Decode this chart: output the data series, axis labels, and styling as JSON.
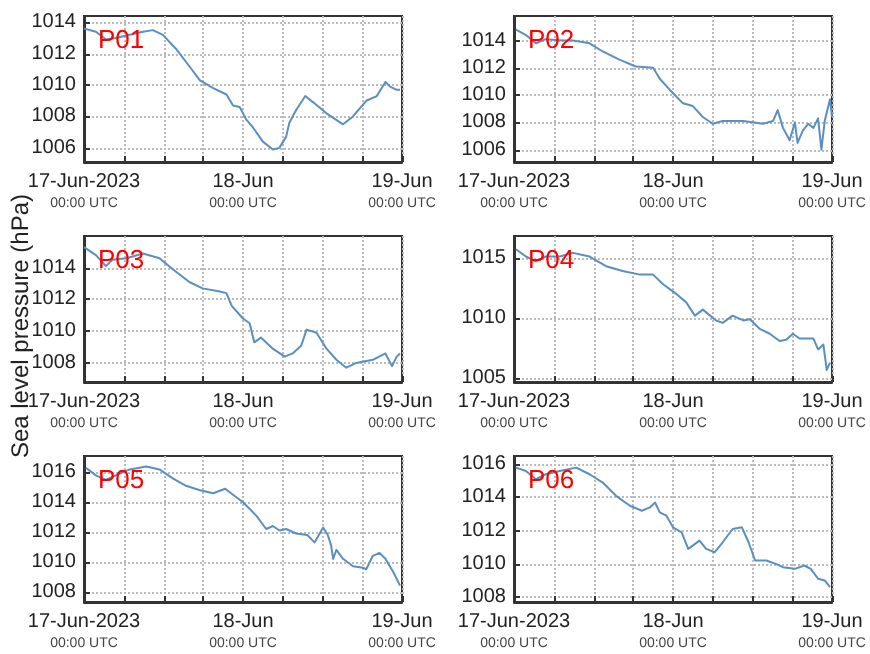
{
  "chart_data": [
    {
      "type": "line",
      "title": "P01",
      "color": "#5b8fbf",
      "grid": true,
      "xlim": [
        "2023-06-17T00:00",
        "2023-06-19T00:00"
      ],
      "ylim": [
        1005.1,
        1014.4
      ],
      "yticks": [
        1006,
        1008,
        1010,
        1012,
        1014
      ],
      "xticks": [
        {
          "value": "2023-06-17T00:00",
          "label": "17-Jun-2023\n00:00 UTC"
        },
        {
          "value": "2023-06-17T06:00",
          "label": null
        },
        {
          "value": "2023-06-17T12:00",
          "label": null
        },
        {
          "value": "2023-06-17T18:00",
          "label": null
        },
        {
          "value": "2023-06-18T00:00",
          "label": "18-Jun\n00:00 UTC"
        },
        {
          "value": "2023-06-18T06:00",
          "label": null
        },
        {
          "value": "2023-06-18T12:00",
          "label": null
        },
        {
          "value": "2023-06-18T18:00",
          "label": null
        },
        {
          "value": "2023-06-19T00:00",
          "label": "19-Jun\n00:00 UTC"
        }
      ],
      "x": [
        "2023-06-17T00:00",
        "2023-06-17T01:48",
        "2023-06-17T03:18",
        "2023-06-17T04:48",
        "2023-06-17T06:54",
        "2023-06-17T08:54",
        "2023-06-17T10:24",
        "2023-06-17T11:54",
        "2023-06-17T13:54",
        "2023-06-17T15:54",
        "2023-06-17T17:30",
        "2023-06-17T19:30",
        "2023-06-17T21:30",
        "2023-06-17T22:30",
        "2023-06-17T23:30",
        "2023-06-18T00:30",
        "2023-06-18T01:30",
        "2023-06-18T03:00",
        "2023-06-18T04:30",
        "2023-06-18T05:30",
        "2023-06-18T06:30",
        "2023-06-18T07:00",
        "2023-06-18T08:00",
        "2023-06-18T09:24",
        "2023-06-18T10:36",
        "2023-06-18T12:36",
        "2023-06-18T15:06",
        "2023-06-18T16:36",
        "2023-06-18T18:36",
        "2023-06-18T20:12",
        "2023-06-18T21:30",
        "2023-06-18T22:12",
        "2023-06-18T23:12",
        "2023-06-18T23:42"
      ],
      "values": [
        1013.6,
        1013.4,
        1012.9,
        1013.0,
        1013.2,
        1013.4,
        1013.5,
        1013.2,
        1012.3,
        1011.2,
        1010.3,
        1009.8,
        1009.4,
        1008.7,
        1008.6,
        1007.8,
        1007.3,
        1006.4,
        1005.9,
        1006.0,
        1006.7,
        1007.6,
        1008.4,
        1009.3,
        1008.9,
        1008.2,
        1007.5,
        1008.0,
        1009.0,
        1009.3,
        1010.2,
        1009.9,
        1009.7,
        1009.7
      ]
    },
    {
      "type": "line",
      "title": "P02",
      "color": "#5b8fbf",
      "grid": true,
      "xlim": [
        "2023-06-17T00:00",
        "2023-06-19T00:00"
      ],
      "ylim": [
        1005.1,
        1015.8
      ],
      "yticks": [
        1006,
        1008,
        1010,
        1012,
        1014
      ],
      "xticks": [
        {
          "value": "2023-06-17T00:00",
          "label": "17-Jun-2023\n00:00 UTC"
        },
        {
          "value": "2023-06-17T06:00",
          "label": null
        },
        {
          "value": "2023-06-17T12:00",
          "label": null
        },
        {
          "value": "2023-06-17T18:00",
          "label": null
        },
        {
          "value": "2023-06-18T00:00",
          "label": "18-Jun\n00:00 UTC"
        },
        {
          "value": "2023-06-18T06:00",
          "label": null
        },
        {
          "value": "2023-06-18T12:00",
          "label": null
        },
        {
          "value": "2023-06-18T18:00",
          "label": null
        },
        {
          "value": "2023-06-19T00:00",
          "label": "19-Jun\n00:00 UTC"
        }
      ],
      "x": [
        "2023-06-17T00:18",
        "2023-06-17T01:48",
        "2023-06-17T03:18",
        "2023-06-17T04:48",
        "2023-06-17T07:24",
        "2023-06-17T08:54",
        "2023-06-17T11:24",
        "2023-06-17T13:24",
        "2023-06-17T15:54",
        "2023-06-17T18:24",
        "2023-06-17T21:00",
        "2023-06-17T22:00",
        "2023-06-17T23:30",
        "2023-06-18T01:30",
        "2023-06-18T03:00",
        "2023-06-18T04:30",
        "2023-06-18T06:00",
        "2023-06-18T07:30",
        "2023-06-18T10:36",
        "2023-06-18T13:36",
        "2023-06-18T15:06",
        "2023-06-18T15:48",
        "2023-06-18T16:36",
        "2023-06-18T17:36",
        "2023-06-18T18:24",
        "2023-06-18T18:48",
        "2023-06-18T19:36",
        "2023-06-18T20:24",
        "2023-06-18T21:12",
        "2023-06-18T21:54",
        "2023-06-18T22:24",
        "2023-06-18T22:54",
        "2023-06-18T23:42",
        "2023-06-19T00:00"
      ],
      "values": [
        1014.8,
        1014.4,
        1013.8,
        1014.1,
        1014.0,
        1014.0,
        1013.8,
        1013.2,
        1012.6,
        1012.1,
        1012.0,
        1011.2,
        1010.4,
        1009.4,
        1009.2,
        1008.4,
        1007.9,
        1008.1,
        1008.1,
        1007.9,
        1008.1,
        1008.9,
        1007.6,
        1006.7,
        1008.0,
        1006.5,
        1007.4,
        1007.9,
        1007.6,
        1008.3,
        1006.0,
        1008.1,
        1009.7,
        1008.4
      ]
    },
    {
      "type": "line",
      "title": "P03",
      "ylabel": "Sea level pressure (hPa)",
      "color": "#5b8fbf",
      "grid": true,
      "xlim": [
        "2023-06-17T00:00",
        "2023-06-19T00:00"
      ],
      "ylim": [
        1006.8,
        1016
      ],
      "yticks": [
        1008,
        1010,
        1012,
        1014
      ],
      "xticks": [
        {
          "value": "2023-06-17T00:00",
          "label": "17-Jun-2023\n00:00 UTC"
        },
        {
          "value": "2023-06-17T06:00",
          "label": null
        },
        {
          "value": "2023-06-17T12:00",
          "label": null
        },
        {
          "value": "2023-06-17T18:00",
          "label": null
        },
        {
          "value": "2023-06-18T00:00",
          "label": "18-Jun\n00:00 UTC"
        },
        {
          "value": "2023-06-18T06:00",
          "label": null
        },
        {
          "value": "2023-06-18T12:00",
          "label": null
        },
        {
          "value": "2023-06-18T18:00",
          "label": null
        },
        {
          "value": "2023-06-19T00:00",
          "label": "19-Jun\n00:00 UTC"
        }
      ],
      "x": [
        "2023-06-17T00:00",
        "2023-06-17T01:48",
        "2023-06-17T03:18",
        "2023-06-17T04:18",
        "2023-06-17T06:24",
        "2023-06-17T08:54",
        "2023-06-17T11:24",
        "2023-06-17T13:24",
        "2023-06-17T15:54",
        "2023-06-17T17:54",
        "2023-06-17T20:30",
        "2023-06-17T21:30",
        "2023-06-17T22:18",
        "2023-06-18T00:00",
        "2023-06-18T01:00",
        "2023-06-18T01:42",
        "2023-06-18T02:42",
        "2023-06-18T04:30",
        "2023-06-18T06:18",
        "2023-06-18T07:30",
        "2023-06-18T08:48",
        "2023-06-18T09:36",
        "2023-06-18T11:06",
        "2023-06-18T12:36",
        "2023-06-18T14:06",
        "2023-06-18T15:36",
        "2023-06-18T17:06",
        "2023-06-18T19:36",
        "2023-06-18T21:30",
        "2023-06-18T22:30",
        "2023-06-18T23:12",
        "2023-06-18T23:42"
      ],
      "values": [
        1015.3,
        1014.8,
        1014.1,
        1014.5,
        1014.6,
        1014.9,
        1014.6,
        1013.9,
        1013.1,
        1012.7,
        1012.5,
        1012.4,
        1011.6,
        1010.8,
        1010.5,
        1009.3,
        1009.6,
        1008.9,
        1008.4,
        1008.6,
        1009.1,
        1010.1,
        1009.9,
        1008.9,
        1008.2,
        1007.7,
        1008.0,
        1008.2,
        1008.6,
        1007.8,
        1008.4,
        1008.6
      ]
    },
    {
      "type": "line",
      "title": "P04",
      "color": "#5b8fbf",
      "grid": true,
      "xlim": [
        "2023-06-17T00:00",
        "2023-06-19T00:00"
      ],
      "ylim": [
        1004.7,
        1016.8
      ],
      "yticks": [
        1005,
        1010,
        1015
      ],
      "xticks": [
        {
          "value": "2023-06-17T00:00",
          "label": "17-Jun-2023\n00:00 UTC"
        },
        {
          "value": "2023-06-17T06:00",
          "label": null
        },
        {
          "value": "2023-06-17T12:00",
          "label": null
        },
        {
          "value": "2023-06-17T18:00",
          "label": null
        },
        {
          "value": "2023-06-18T00:00",
          "label": "18-Jun\n00:00 UTC"
        },
        {
          "value": "2023-06-18T06:00",
          "label": null
        },
        {
          "value": "2023-06-18T12:00",
          "label": null
        },
        {
          "value": "2023-06-18T18:00",
          "label": null
        },
        {
          "value": "2023-06-19T00:00",
          "label": "19-Jun\n00:00 UTC"
        }
      ],
      "x": [
        "2023-06-17T00:18",
        "2023-06-17T01:48",
        "2023-06-17T03:18",
        "2023-06-17T04:48",
        "2023-06-17T06:54",
        "2023-06-17T08:54",
        "2023-06-17T11:24",
        "2023-06-17T13:54",
        "2023-06-17T16:24",
        "2023-06-17T19:00",
        "2023-06-17T21:00",
        "2023-06-17T22:30",
        "2023-06-18T00:30",
        "2023-06-18T02:00",
        "2023-06-18T03:18",
        "2023-06-18T04:30",
        "2023-06-18T06:30",
        "2023-06-18T07:30",
        "2023-06-18T09:00",
        "2023-06-18T10:36",
        "2023-06-18T11:36",
        "2023-06-18T13:06",
        "2023-06-18T14:36",
        "2023-06-18T16:06",
        "2023-06-18T17:06",
        "2023-06-18T18:06",
        "2023-06-18T19:06",
        "2023-06-18T21:12",
        "2023-06-18T21:54",
        "2023-06-18T22:42",
        "2023-06-18T23:12",
        "2023-06-18T23:42"
      ],
      "values": [
        1015.7,
        1015.1,
        1014.7,
        1015.1,
        1015.1,
        1015.4,
        1015.1,
        1014.3,
        1013.9,
        1013.6,
        1013.6,
        1012.8,
        1012.0,
        1011.3,
        1010.2,
        1010.7,
        1009.8,
        1009.6,
        1010.2,
        1009.8,
        1009.9,
        1009.1,
        1008.7,
        1008.1,
        1008.2,
        1008.7,
        1008.3,
        1008.3,
        1007.4,
        1007.8,
        1005.7,
        1006.3
      ]
    },
    {
      "type": "line",
      "title": "P05",
      "color": "#5b8fbf",
      "grid": true,
      "xlim": [
        "2023-06-17T00:00",
        "2023-06-19T00:00"
      ],
      "ylim": [
        1007.3,
        1017.1
      ],
      "yticks": [
        1008,
        1010,
        1012,
        1014,
        1016
      ],
      "xticks": [
        {
          "value": "2023-06-17T00:00",
          "label": "17-Jun-2023\n00:00 UTC"
        },
        {
          "value": "2023-06-17T06:00",
          "label": null
        },
        {
          "value": "2023-06-17T12:00",
          "label": null
        },
        {
          "value": "2023-06-17T18:00",
          "label": null
        },
        {
          "value": "2023-06-18T00:00",
          "label": "18-Jun\n00:00 UTC"
        },
        {
          "value": "2023-06-18T06:00",
          "label": null
        },
        {
          "value": "2023-06-18T12:00",
          "label": null
        },
        {
          "value": "2023-06-18T18:00",
          "label": null
        },
        {
          "value": "2023-06-19T00:00",
          "label": "19-Jun\n00:00 UTC"
        }
      ],
      "x": [
        "2023-06-17T00:18",
        "2023-06-17T01:48",
        "2023-06-17T03:18",
        "2023-06-17T04:48",
        "2023-06-17T06:54",
        "2023-06-17T09:24",
        "2023-06-17T11:24",
        "2023-06-17T13:24",
        "2023-06-17T15:24",
        "2023-06-17T17:30",
        "2023-06-17T19:30",
        "2023-06-17T21:18",
        "2023-06-17T22:30",
        "2023-06-18T00:00",
        "2023-06-18T02:00",
        "2023-06-18T03:30",
        "2023-06-18T04:30",
        "2023-06-18T05:30",
        "2023-06-18T06:30",
        "2023-06-18T08:00",
        "2023-06-18T09:42",
        "2023-06-18T10:48",
        "2023-06-18T12:06",
        "2023-06-18T12:48",
        "2023-06-18T13:18",
        "2023-06-18T13:36",
        "2023-06-18T14:06",
        "2023-06-18T15:06",
        "2023-06-18T16:36",
        "2023-06-18T18:06",
        "2023-06-18T18:36",
        "2023-06-18T19:36",
        "2023-06-18T20:36",
        "2023-06-18T21:30",
        "2023-06-18T22:42",
        "2023-06-18T23:42"
      ],
      "values": [
        1016.3,
        1015.8,
        1015.5,
        1015.8,
        1016.2,
        1016.4,
        1016.2,
        1015.6,
        1015.1,
        1014.8,
        1014.6,
        1014.9,
        1014.5,
        1014.0,
        1013.1,
        1012.2,
        1012.4,
        1012.1,
        1012.2,
        1011.9,
        1011.8,
        1011.3,
        1012.3,
        1011.8,
        1011.1,
        1010.2,
        1010.8,
        1010.2,
        1009.7,
        1009.6,
        1009.5,
        1010.4,
        1010.6,
        1010.2,
        1009.3,
        1008.4
      ]
    },
    {
      "type": "line",
      "title": "P06",
      "color": "#5b8fbf",
      "grid": true,
      "xlim": [
        "2023-06-17T00:00",
        "2023-06-19T00:00"
      ],
      "ylim": [
        1007.7,
        1016.5
      ],
      "yticks": [
        1008,
        1010,
        1012,
        1014,
        1016
      ],
      "xticks": [
        {
          "value": "2023-06-17T00:00",
          "label": "17-Jun-2023\n00:00 UTC"
        },
        {
          "value": "2023-06-17T06:00",
          "label": null
        },
        {
          "value": "2023-06-17T12:00",
          "label": null
        },
        {
          "value": "2023-06-17T18:00",
          "label": null
        },
        {
          "value": "2023-06-18T00:00",
          "label": "18-Jun\n00:00 UTC"
        },
        {
          "value": "2023-06-18T06:00",
          "label": null
        },
        {
          "value": "2023-06-18T12:00",
          "label": null
        },
        {
          "value": "2023-06-18T18:00",
          "label": null
        },
        {
          "value": "2023-06-19T00:00",
          "label": "19-Jun\n00:00 UTC"
        }
      ],
      "x": [
        "2023-06-17T00:18",
        "2023-06-17T01:48",
        "2023-06-17T03:18",
        "2023-06-17T04:48",
        "2023-06-17T06:54",
        "2023-06-17T09:24",
        "2023-06-17T11:24",
        "2023-06-17T13:24",
        "2023-06-17T15:24",
        "2023-06-17T17:30",
        "2023-06-17T19:18",
        "2023-06-17T20:30",
        "2023-06-17T21:18",
        "2023-06-17T22:00",
        "2023-06-17T23:00",
        "2023-06-18T00:00",
        "2023-06-18T01:18",
        "2023-06-18T02:18",
        "2023-06-18T04:00",
        "2023-06-18T05:00",
        "2023-06-18T06:18",
        "2023-06-18T07:30",
        "2023-06-18T09:00",
        "2023-06-18T10:24",
        "2023-06-18T11:24",
        "2023-06-18T12:24",
        "2023-06-18T14:06",
        "2023-06-18T15:30",
        "2023-06-18T16:36",
        "2023-06-18T18:24",
        "2023-06-18T19:48",
        "2023-06-18T20:48",
        "2023-06-18T21:54",
        "2023-06-18T22:54",
        "2023-06-18T23:42"
      ],
      "values": [
        1015.8,
        1015.6,
        1015.1,
        1015.4,
        1015.6,
        1015.8,
        1015.4,
        1014.9,
        1014.1,
        1013.5,
        1013.2,
        1013.4,
        1013.7,
        1013.1,
        1012.9,
        1012.2,
        1011.9,
        1010.9,
        1011.4,
        1010.9,
        1010.7,
        1011.3,
        1012.1,
        1012.2,
        1011.3,
        1010.2,
        1010.2,
        1010.0,
        1009.8,
        1009.7,
        1009.9,
        1009.7,
        1009.1,
        1009.0,
        1008.6
      ]
    }
  ]
}
